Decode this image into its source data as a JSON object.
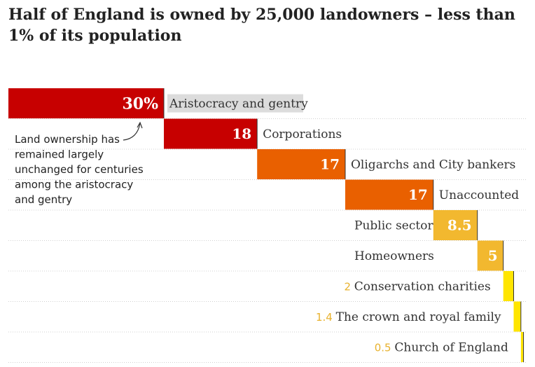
{
  "title": "Half of England is owned by 25,000 landowners – less than 1% of its population",
  "chart_data": {
    "type": "bar",
    "title": "Half of England is owned by 25,000 landowners – less than 1% of its population",
    "xlabel": "",
    "ylabel": "",
    "unit": "%",
    "xlim": [
      0,
      100
    ],
    "categories": [
      "Aristocracy and gentry",
      "Corporations",
      "Oligarchs and City bankers",
      "Unaccounted",
      "Public sector",
      "Homeowners",
      "Conservation charities",
      "The crown and royal family",
      "Church of England"
    ],
    "values": [
      30,
      18,
      17,
      17,
      8.5,
      5,
      2,
      1.4,
      0.5
    ],
    "value_labels": [
      "30%",
      "18",
      "17",
      "17",
      "8.5",
      "5",
      "2",
      "1.4",
      "0.5"
    ],
    "colors": [
      "#c70000",
      "#c70000",
      "#e96000",
      "#e96000",
      "#f2b82f",
      "#f2b82f",
      "#ffe500",
      "#ffe500",
      "#ffe500"
    ],
    "grid": true,
    "annotation": "Land ownership has remained largely unchanged for centuries among the aristocracy and gentry"
  }
}
